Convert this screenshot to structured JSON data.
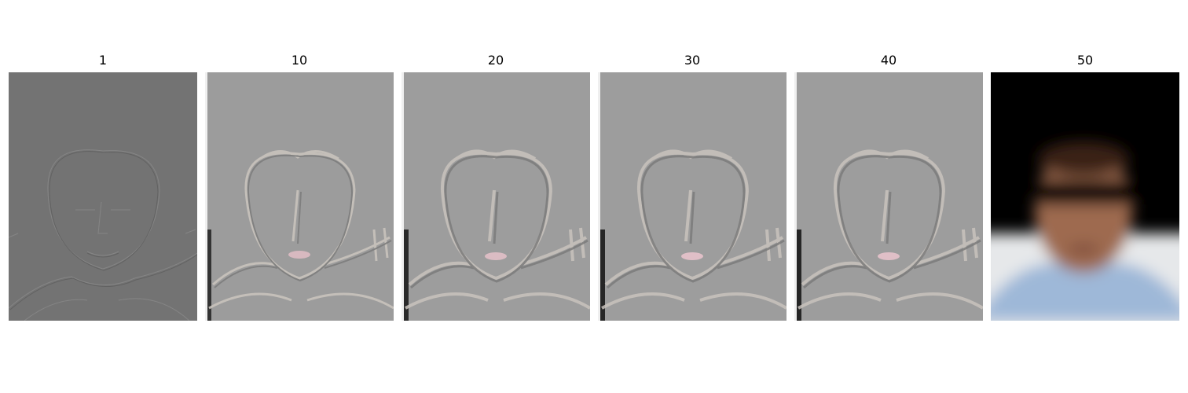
{
  "figure": {
    "panels": [
      {
        "title": "1",
        "variant": "fine-edges",
        "bg": "#737373"
      },
      {
        "title": "10",
        "variant": "medium-edges",
        "bg": "#9c9c9c"
      },
      {
        "title": "20",
        "variant": "medium-edges",
        "bg": "#9d9d9d"
      },
      {
        "title": "30",
        "variant": "medium-edges",
        "bg": "#9d9d9d"
      },
      {
        "title": "40",
        "variant": "medium-edges",
        "bg": "#9d9d9d"
      },
      {
        "title": "50",
        "variant": "blurred-photo",
        "bg": "#000000"
      }
    ]
  }
}
